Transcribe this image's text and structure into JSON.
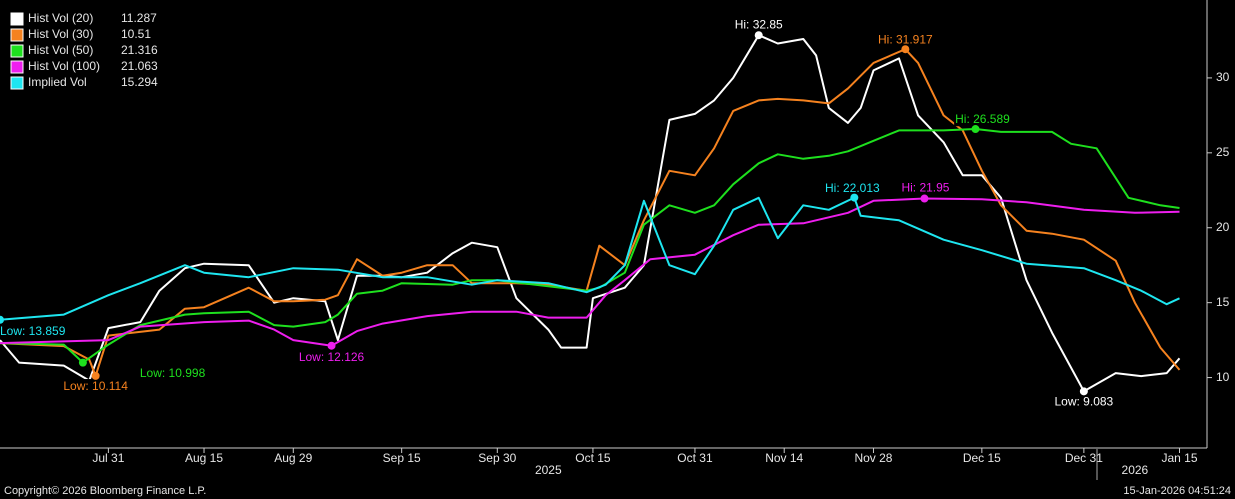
{
  "chart_data": {
    "type": "line",
    "xlim": [
      "2025-07-14",
      "2026-01-19"
    ],
    "xticks": [
      {
        "value": "2025-07-31",
        "label": "Jul 31"
      },
      {
        "value": "2025-08-15",
        "label": "Aug 15"
      },
      {
        "value": "2025-08-29",
        "label": "Aug 29"
      },
      {
        "value": "2025-09-15",
        "label": "Sep 15"
      },
      {
        "value": "2025-09-30",
        "label": "Sep 30"
      },
      {
        "value": "2025-10-15",
        "label": "Oct 15"
      },
      {
        "value": "2025-10-31",
        "label": "Oct 31"
      },
      {
        "value": "2025-11-14",
        "label": "Nov 14"
      },
      {
        "value": "2025-11-28",
        "label": "Nov 28"
      },
      {
        "value": "2025-12-15",
        "label": "Dec 15"
      },
      {
        "value": "2025-12-31",
        "label": "Dec 31"
      },
      {
        "value": "2026-01-15",
        "label": "Jan 15"
      }
    ],
    "year_labels": [
      {
        "value": "2025-10-08",
        "label": "2025"
      },
      {
        "value": "2026-01-08",
        "label": "2026"
      }
    ],
    "ylim": [
      5.3,
      35.2
    ],
    "yticks": [
      10,
      15,
      20,
      25,
      30
    ],
    "series": [
      {
        "name": "Hist Vol (20)",
        "color": "#ffffff",
        "legend_value": 11.287,
        "x": [
          "2025-07-14",
          "2025-07-17",
          "2025-07-24",
          "2025-07-28",
          "2025-07-31",
          "2025-08-05",
          "2025-08-08",
          "2025-08-12",
          "2025-08-15",
          "2025-08-22",
          "2025-08-26",
          "2025-08-29",
          "2025-09-03",
          "2025-09-05",
          "2025-09-08",
          "2025-09-12",
          "2025-09-15",
          "2025-09-19",
          "2025-09-23",
          "2025-09-26",
          "2025-09-30",
          "2025-10-03",
          "2025-10-08",
          "2025-10-10",
          "2025-10-14",
          "2025-10-15",
          "2025-10-20",
          "2025-10-23",
          "2025-10-27",
          "2025-10-31",
          "2025-11-03",
          "2025-11-06",
          "2025-11-10",
          "2025-11-13",
          "2025-11-17",
          "2025-11-19",
          "2025-11-21",
          "2025-11-24",
          "2025-11-26",
          "2025-11-28",
          "2025-12-02",
          "2025-12-05",
          "2025-12-09",
          "2025-12-12",
          "2025-12-15",
          "2025-12-18",
          "2025-12-22",
          "2025-12-26",
          "2025-12-31",
          "2026-01-05",
          "2026-01-09",
          "2026-01-13",
          "2026-01-15"
        ],
        "values": [
          12.5,
          11,
          10.8,
          9.8,
          13.3,
          13.7,
          15.8,
          17.3,
          17.6,
          17.5,
          15,
          15.3,
          15.1,
          12.5,
          16.8,
          16.8,
          16.7,
          17,
          18.3,
          19,
          18.7,
          15.3,
          13.2,
          12,
          12,
          15.3,
          16,
          17.5,
          27.2,
          27.6,
          28.5,
          30,
          32.85,
          32.3,
          32.6,
          31.5,
          28,
          27,
          28,
          30.5,
          31.3,
          27.5,
          25.7,
          23.5,
          23.5,
          22,
          16.5,
          13,
          9.083,
          10.3,
          10.1,
          10.3,
          11.287
        ]
      },
      {
        "name": "Hist Vol (30)",
        "color": "#f5821f",
        "legend_value": 10.51,
        "x": [
          "2025-07-14",
          "2025-07-24",
          "2025-07-28",
          "2025-07-29",
          "2025-07-31",
          "2025-08-08",
          "2025-08-12",
          "2025-08-15",
          "2025-08-22",
          "2025-08-26",
          "2025-08-29",
          "2025-09-03",
          "2025-09-05",
          "2025-09-08",
          "2025-09-12",
          "2025-09-15",
          "2025-09-19",
          "2025-09-23",
          "2025-09-26",
          "2025-09-30",
          "2025-10-03",
          "2025-10-08",
          "2025-10-14",
          "2025-10-16",
          "2025-10-20",
          "2025-10-23",
          "2025-10-27",
          "2025-10-31",
          "2025-11-03",
          "2025-11-06",
          "2025-11-10",
          "2025-11-13",
          "2025-11-17",
          "2025-11-21",
          "2025-11-24",
          "2025-11-28",
          "2025-12-03",
          "2025-12-05",
          "2025-12-09",
          "2025-12-12",
          "2025-12-15",
          "2025-12-18",
          "2025-12-22",
          "2025-12-26",
          "2025-12-31",
          "2026-01-05",
          "2026-01-08",
          "2026-01-12",
          "2026-01-15"
        ],
        "values": [
          12.3,
          12.1,
          11.2,
          10.114,
          12.8,
          13.2,
          14.6,
          14.7,
          16,
          15.1,
          15.1,
          15.2,
          15.5,
          17.9,
          16.8,
          17,
          17.5,
          17.5,
          16.3,
          16.3,
          16.3,
          16.2,
          15.8,
          18.8,
          17.5,
          20.5,
          23.8,
          23.5,
          25.3,
          27.8,
          28.5,
          28.6,
          28.5,
          28.3,
          29.3,
          31,
          31.917,
          31,
          27.5,
          26.5,
          23.8,
          21.5,
          19.8,
          19.6,
          19.2,
          17.8,
          15,
          12,
          10.51
        ]
      },
      {
        "name": "Hist Vol (50)",
        "color": "#1ee01e",
        "legend_value": 21.316,
        "x": [
          "2025-07-14",
          "2025-07-24",
          "2025-07-27",
          "2025-07-31",
          "2025-08-05",
          "2025-08-12",
          "2025-08-15",
          "2025-08-22",
          "2025-08-26",
          "2025-08-29",
          "2025-09-03",
          "2025-09-05",
          "2025-09-08",
          "2025-09-12",
          "2025-09-15",
          "2025-09-23",
          "2025-09-26",
          "2025-09-30",
          "2025-10-08",
          "2025-10-14",
          "2025-10-16",
          "2025-10-20",
          "2025-10-23",
          "2025-10-27",
          "2025-10-31",
          "2025-11-03",
          "2025-11-06",
          "2025-11-10",
          "2025-11-13",
          "2025-11-17",
          "2025-11-21",
          "2025-11-24",
          "2025-11-28",
          "2025-12-02",
          "2025-12-09",
          "2025-12-14",
          "2025-12-18",
          "2025-12-26",
          "2025-12-29",
          "2026-01-02",
          "2026-01-07",
          "2026-01-12",
          "2026-01-15"
        ],
        "values": [
          12.3,
          12.2,
          10.998,
          12.2,
          13.5,
          14.2,
          14.3,
          14.4,
          13.5,
          13.4,
          13.7,
          14.2,
          15.6,
          15.8,
          16.3,
          16.2,
          16.5,
          16.5,
          16.1,
          15.8,
          16,
          17,
          20.2,
          21.5,
          21,
          21.5,
          22.9,
          24.3,
          24.9,
          24.6,
          24.8,
          25.1,
          25.8,
          26.5,
          26.5,
          26.589,
          26.4,
          26.4,
          25.6,
          25.3,
          22,
          21.5,
          21.316
        ]
      },
      {
        "name": "Hist Vol (100)",
        "color": "#ee1eee",
        "legend_value": 21.063,
        "x": [
          "2025-07-14",
          "2025-07-31",
          "2025-08-05",
          "2025-08-15",
          "2025-08-22",
          "2025-08-26",
          "2025-08-29",
          "2025-09-04",
          "2025-09-08",
          "2025-09-12",
          "2025-09-19",
          "2025-09-26",
          "2025-09-30",
          "2025-10-03",
          "2025-10-08",
          "2025-10-14",
          "2025-10-17",
          "2025-10-20",
          "2025-10-24",
          "2025-10-31",
          "2025-11-06",
          "2025-11-10",
          "2025-11-17",
          "2025-11-24",
          "2025-11-28",
          "2025-12-06",
          "2025-12-15",
          "2025-12-22",
          "2025-12-31",
          "2026-01-08",
          "2026-01-15"
        ],
        "values": [
          12.3,
          12.5,
          13.4,
          13.7,
          13.8,
          13.2,
          12.5,
          12.126,
          13.1,
          13.6,
          14.1,
          14.4,
          14.4,
          14.4,
          14,
          14,
          15.5,
          16.5,
          17.9,
          18.2,
          19.5,
          20.2,
          20.3,
          21,
          21.8,
          21.95,
          21.9,
          21.7,
          21.2,
          21,
          21.063
        ]
      },
      {
        "name": "Implied Vol",
        "color": "#1ee6f0",
        "legend_value": 15.294,
        "x": [
          "2025-07-14",
          "2025-07-24",
          "2025-07-31",
          "2025-08-05",
          "2025-08-12",
          "2025-08-15",
          "2025-08-22",
          "2025-08-29",
          "2025-09-05",
          "2025-09-12",
          "2025-09-19",
          "2025-09-26",
          "2025-09-30",
          "2025-10-08",
          "2025-10-14",
          "2025-10-17",
          "2025-10-20",
          "2025-10-23",
          "2025-10-27",
          "2025-10-31",
          "2025-11-03",
          "2025-11-06",
          "2025-11-10",
          "2025-11-13",
          "2025-11-17",
          "2025-11-21",
          "2025-11-25",
          "2025-11-26",
          "2025-12-02",
          "2025-12-09",
          "2025-12-15",
          "2025-12-22",
          "2025-12-31",
          "2026-01-05",
          "2026-01-09",
          "2026-01-13",
          "2026-01-15"
        ],
        "values": [
          13.859,
          14.2,
          15.5,
          16.3,
          17.5,
          17,
          16.7,
          17.3,
          17.2,
          16.7,
          16.7,
          16.2,
          16.5,
          16.3,
          15.7,
          16.2,
          17.5,
          21.8,
          17.5,
          16.9,
          18.8,
          21.2,
          22,
          19.3,
          21.5,
          21.2,
          22.013,
          20.8,
          20.5,
          19.2,
          18.5,
          17.6,
          17.3,
          16.5,
          15.8,
          14.9,
          15.294
        ]
      }
    ],
    "annotations": [
      {
        "text": "Hi: 32.85",
        "x": "2025-11-10",
        "y": 32.85,
        "color": "#ffffff"
      },
      {
        "text": "Hi: 31.917",
        "x": "2025-12-03",
        "y": 31.917,
        "color": "#f5821f"
      },
      {
        "text": "Hi: 26.589",
        "x": "2025-12-14",
        "y": 26.589,
        "color": "#1ee01e"
      },
      {
        "text": "Hi: 21.95",
        "x": "2025-12-06",
        "y": 21.95,
        "color": "#ee1eee"
      },
      {
        "text": "Hi: 22.013",
        "x": "2025-11-25",
        "y": 22.013,
        "color": "#1ee6f0"
      },
      {
        "text": "Low: 9.083",
        "x": "2025-12-31",
        "y": 9.083,
        "color": "#ffffff"
      },
      {
        "text": "Low: 10.114",
        "x": "2025-07-29",
        "y": 10.114,
        "color": "#f5821f"
      },
      {
        "text": "Low: 10.998",
        "x": "2025-07-27",
        "y": 10.998,
        "color": "#1ee01e"
      },
      {
        "text": "Low: 12.126",
        "x": "2025-09-04",
        "y": 12.126,
        "color": "#ee1eee"
      },
      {
        "text": "Low: 13.859",
        "x": "2025-07-14",
        "y": 13.859,
        "color": "#1ee6f0"
      }
    ],
    "copyright": "Copyright© 2026 Bloomberg Finance L.P.",
    "timestamp": "15-Jan-2026 04:51:24"
  }
}
